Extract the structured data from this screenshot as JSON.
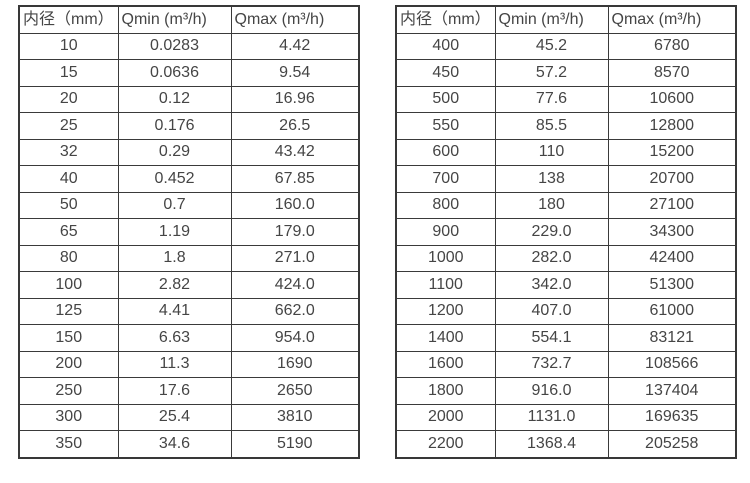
{
  "meta": {
    "background_color": "#ffffff",
    "text_color": "#454545",
    "border_color": "#3a3a3a"
  },
  "chart_data": [
    {
      "type": "table",
      "name": "flow-rate-spec-small-diameters",
      "headers": [
        "内径（mm）",
        "Qmin (m³/h)",
        "Qmax (m³/h)"
      ],
      "rows": [
        [
          "10",
          "0.0283",
          "4.42"
        ],
        [
          "15",
          "0.0636",
          "9.54"
        ],
        [
          "20",
          "0.12",
          "16.96"
        ],
        [
          "25",
          "0.176",
          "26.5"
        ],
        [
          "32",
          "0.29",
          "43.42"
        ],
        [
          "40",
          "0.452",
          "67.85"
        ],
        [
          "50",
          "0.7",
          "160.0"
        ],
        [
          "65",
          "1.19",
          "179.0"
        ],
        [
          "80",
          "1.8",
          "271.0"
        ],
        [
          "100",
          "2.82",
          "424.0"
        ],
        [
          "125",
          "4.41",
          "662.0"
        ],
        [
          "150",
          "6.63",
          "954.0"
        ],
        [
          "200",
          "11.3",
          "1690"
        ],
        [
          "250",
          "17.6",
          "2650"
        ],
        [
          "300",
          "25.4",
          "3810"
        ],
        [
          "350",
          "34.6",
          "5190"
        ]
      ]
    },
    {
      "type": "table",
      "name": "flow-rate-spec-large-diameters",
      "headers": [
        "内径（mm）",
        "Qmin (m³/h)",
        "Qmax (m³/h)"
      ],
      "rows": [
        [
          "400",
          "45.2",
          "6780"
        ],
        [
          "450",
          "57.2",
          "8570"
        ],
        [
          "500",
          "77.6",
          "10600"
        ],
        [
          "550",
          "85.5",
          "12800"
        ],
        [
          "600",
          "110",
          "15200"
        ],
        [
          "700",
          "138",
          "20700"
        ],
        [
          "800",
          "180",
          "27100"
        ],
        [
          "900",
          "229.0",
          "34300"
        ],
        [
          "1000",
          "282.0",
          "42400"
        ],
        [
          "1100",
          "342.0",
          "51300"
        ],
        [
          "1200",
          "407.0",
          "61000"
        ],
        [
          "1400",
          "554.1",
          "83121"
        ],
        [
          "1600",
          "732.7",
          "108566"
        ],
        [
          "1800",
          "916.0",
          "137404"
        ],
        [
          "2000",
          "1131.0",
          "169635"
        ],
        [
          "2200",
          "1368.4",
          "205258"
        ]
      ]
    }
  ]
}
